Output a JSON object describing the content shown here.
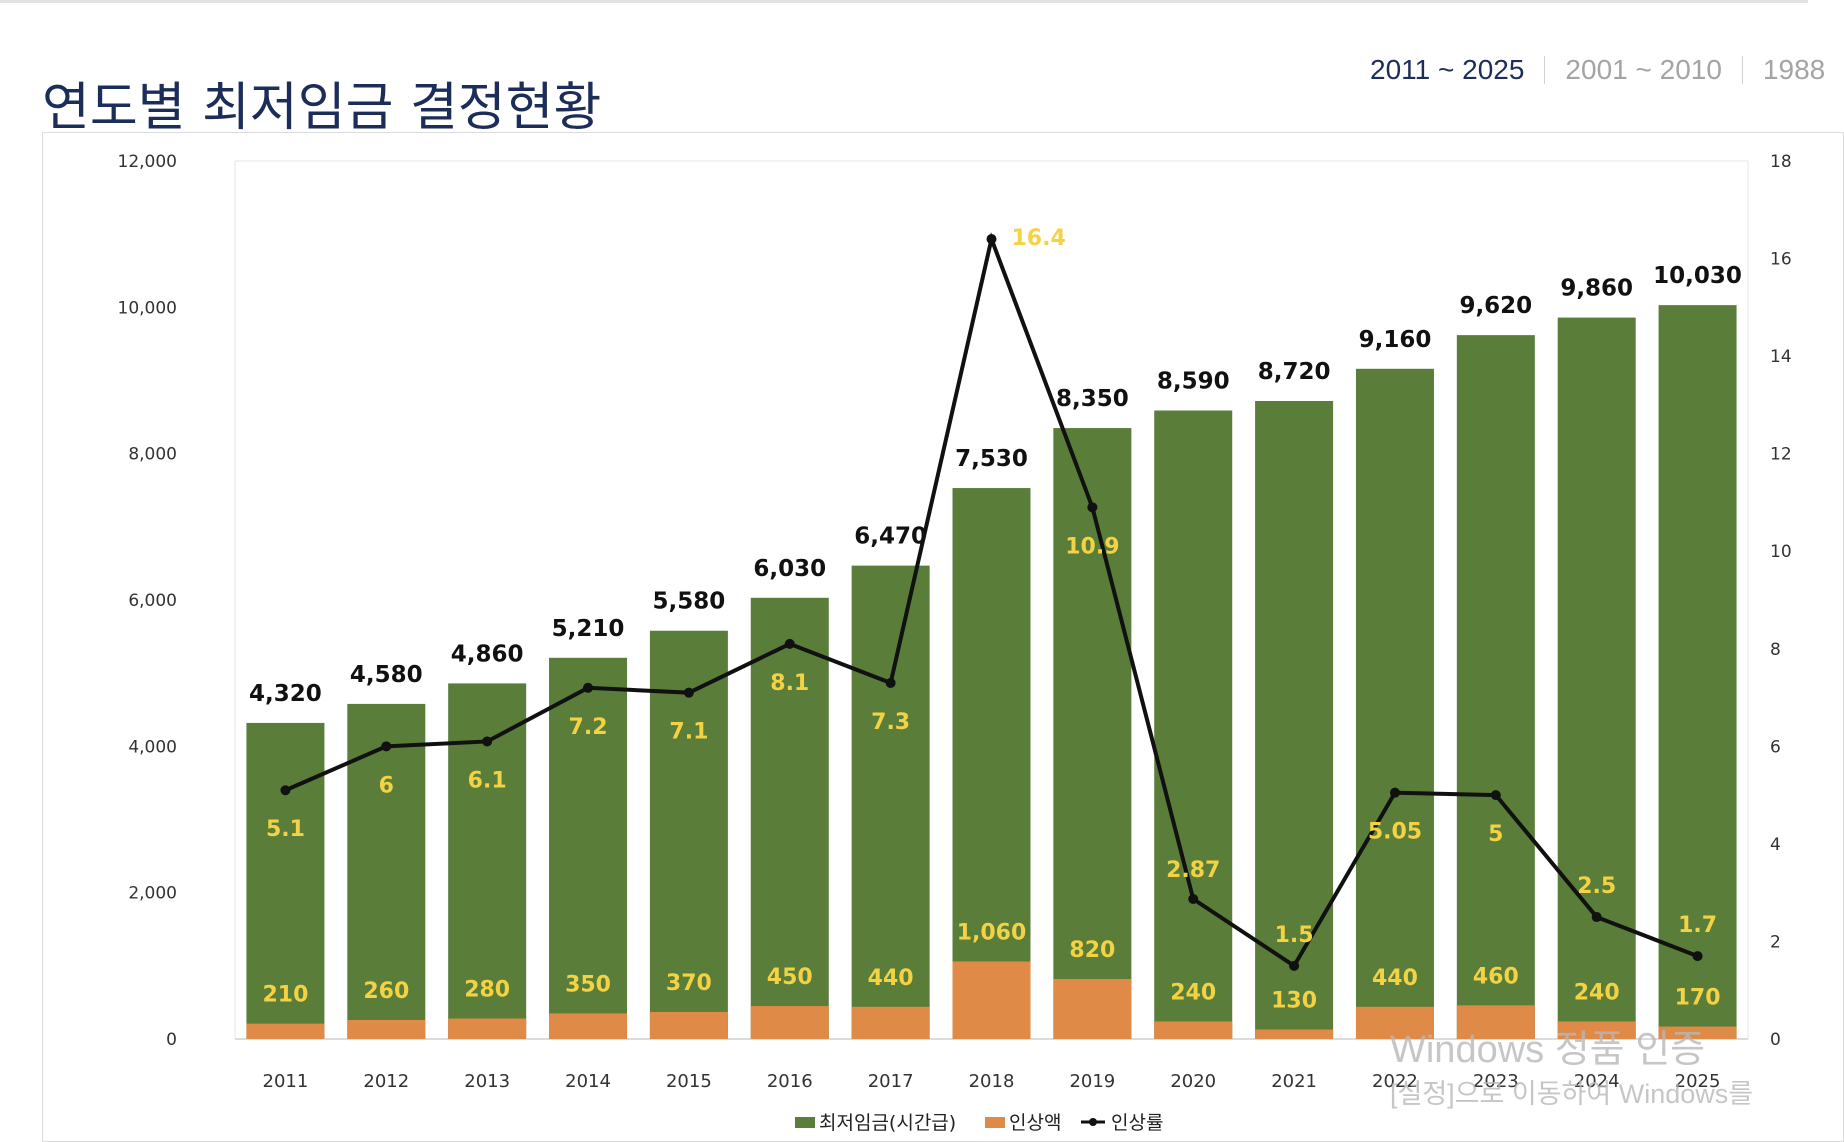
{
  "page": {
    "title": "연도별 최저임금 결정현황",
    "range_tabs": [
      "2011 ~ 2025",
      "2001 ~ 2010",
      "1988"
    ],
    "active_tab": 0
  },
  "watermark": {
    "line1": "Windows 정품 인증",
    "line2": "[설정]으로 이동하여 Windows를"
  },
  "colors": {
    "wage": "#5a7d3a",
    "increase": "#e08a47",
    "rate_line": "#111111",
    "inner_label": "#f3d243",
    "title": "#1c2d5a"
  },
  "chart_data": {
    "type": "bar",
    "categories": [
      "2011",
      "2012",
      "2013",
      "2014",
      "2015",
      "2016",
      "2017",
      "2018",
      "2019",
      "2020",
      "2021",
      "2022",
      "2023",
      "2024",
      "2025"
    ],
    "series": [
      {
        "name": "최저임금(시간급)",
        "type": "bar",
        "axis": "left",
        "values": [
          4320,
          4580,
          4860,
          5210,
          5580,
          6030,
          6470,
          7530,
          8350,
          8590,
          8720,
          9160,
          9620,
          9860,
          10030
        ],
        "labels": [
          "4,320",
          "4,580",
          "4,860",
          "5,210",
          "5,580",
          "6,030",
          "6,470",
          "7,530",
          "8,350",
          "8,590",
          "8,720",
          "9,160",
          "9,620",
          "9,860",
          "10,030"
        ]
      },
      {
        "name": "인상액",
        "type": "bar",
        "axis": "left",
        "values": [
          210,
          260,
          280,
          350,
          370,
          450,
          440,
          1060,
          820,
          240,
          130,
          440,
          460,
          240,
          170
        ],
        "labels": [
          "210",
          "260",
          "280",
          "350",
          "370",
          "450",
          "440",
          "1,060",
          "820",
          "240",
          "130",
          "440",
          "460",
          "240",
          "170"
        ]
      },
      {
        "name": "인상률",
        "type": "line",
        "axis": "right",
        "values": [
          5.1,
          6,
          6.1,
          7.2,
          7.1,
          8.1,
          7.3,
          16.4,
          10.9,
          2.87,
          1.5,
          5.05,
          5,
          2.5,
          1.7
        ],
        "labels": [
          "5.1",
          "6",
          "6.1",
          "7.2",
          "7.1",
          "8.1",
          "7.3",
          "16.4",
          "10.9",
          "2.87",
          "1.5",
          "5.05",
          "5",
          "2.5",
          "1.7"
        ]
      }
    ],
    "y_left": {
      "min": 0,
      "max": 12000,
      "ticks": [
        "0",
        "2,000",
        "4,000",
        "6,000",
        "8,000",
        "10,000",
        "12,000"
      ]
    },
    "y_right": {
      "min": 0,
      "max": 18,
      "ticks": [
        "0",
        "2",
        "4",
        "6",
        "8",
        "10",
        "12",
        "14",
        "16",
        "18"
      ]
    },
    "grid": false,
    "legend_position": "bottom"
  }
}
